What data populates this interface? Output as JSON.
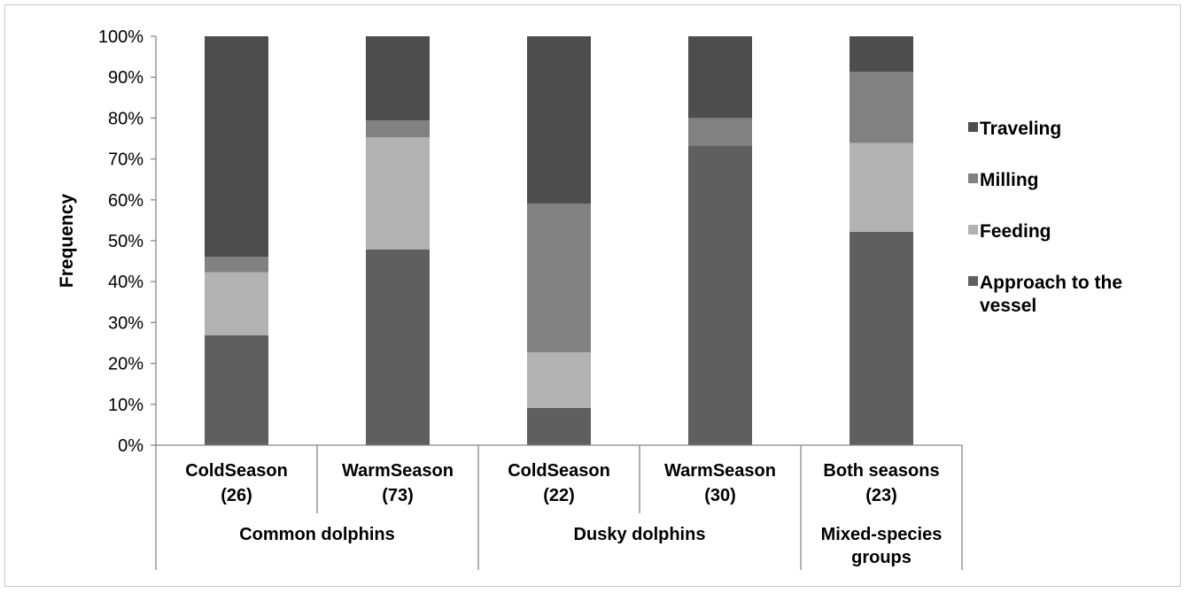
{
  "chart_data": {
    "type": "bar",
    "stacked": true,
    "percent": true,
    "ylabel": "Frequency",
    "ylim": [
      0,
      100
    ],
    "yticks": [
      "0%",
      "10%",
      "20%",
      "30%",
      "40%",
      "50%",
      "60%",
      "70%",
      "80%",
      "90%",
      "100%"
    ],
    "categories": [
      {
        "line1": "ColdSeason",
        "line2": "(26)"
      },
      {
        "line1": "WarmSeason",
        "line2": "(73)"
      },
      {
        "line1": "ColdSeason",
        "line2": "(22)"
      },
      {
        "line1": "WarmSeason",
        "line2": "(30)"
      },
      {
        "line1": "Both seasons",
        "line2": "(23)"
      }
    ],
    "groups": [
      {
        "label_lines": [
          "Common dolphins"
        ],
        "span": [
          0,
          1
        ]
      },
      {
        "label_lines": [
          "Dusky dolphins"
        ],
        "span": [
          2,
          3
        ]
      },
      {
        "label_lines": [
          "Mixed-species",
          "groups"
        ],
        "span": [
          4,
          4
        ]
      }
    ],
    "series": [
      {
        "name": "Approach to the vessel",
        "name_lines": [
          "Approach to the",
          "vessel"
        ],
        "color": "#5f5f5f",
        "values": [
          26.9,
          47.9,
          9.1,
          73.3,
          52.2
        ]
      },
      {
        "name": "Feeding",
        "name_lines": [
          "Feeding"
        ],
        "color": "#b2b2b2",
        "values": [
          15.4,
          27.4,
          13.6,
          0,
          21.7
        ]
      },
      {
        "name": "Milling",
        "name_lines": [
          " Milling"
        ],
        "color": "#818181",
        "values": [
          3.8,
          4.1,
          36.4,
          6.7,
          17.4
        ]
      },
      {
        "name": "Traveling",
        "name_lines": [
          "Traveling"
        ],
        "color": "#4d4d4d",
        "values": [
          53.9,
          20.6,
          40.9,
          20.0,
          8.7
        ]
      }
    ],
    "legend": {
      "position": "right",
      "order": [
        "Traveling",
        "Milling",
        "Feeding",
        "Approach to the vessel"
      ]
    },
    "grid": false
  }
}
